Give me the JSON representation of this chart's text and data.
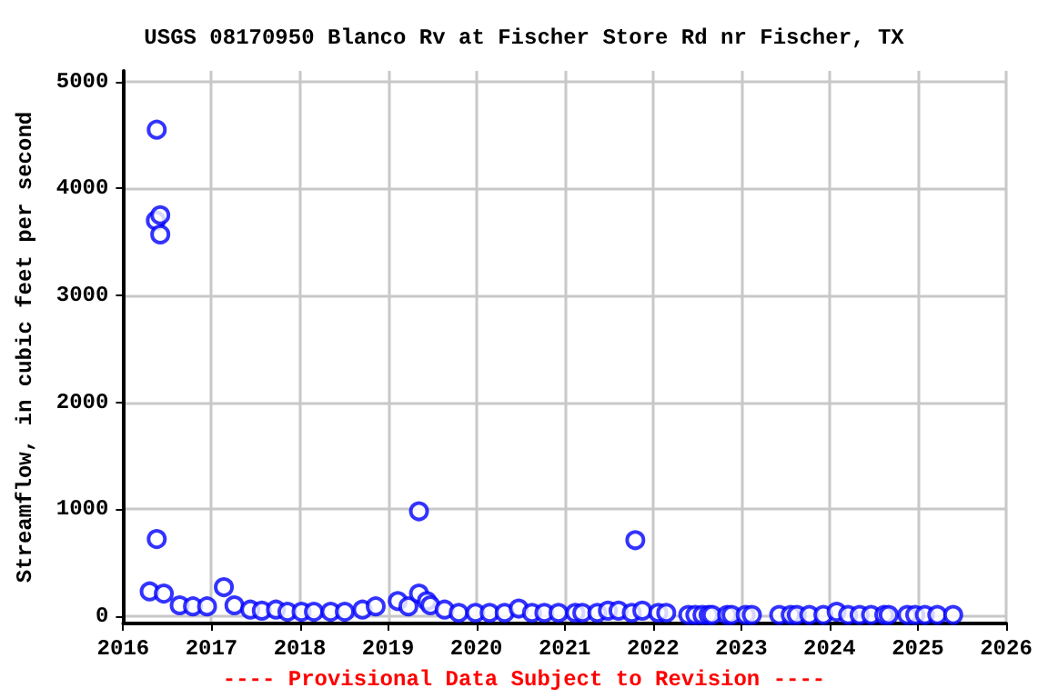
{
  "chart_data": {
    "type": "scatter",
    "title": "USGS 08170950 Blanco Rv at Fischer Store Rd nr Fischer, TX",
    "ylabel": "Streamflow, in cubic feet per second",
    "annotations": [
      "---- Provisional Data Subject to Revision ----"
    ],
    "series": [
      {
        "color": "#0000ff",
        "x": [
          2016.3,
          2016.37,
          2016.38,
          2016.38,
          2016.42,
          2016.42,
          2016.46,
          2016.64,
          2016.79,
          2016.95,
          2017.14,
          2017.26,
          2017.44,
          2017.57,
          2017.73,
          2017.86,
          2018.02,
          2018.16,
          2018.35,
          2018.51,
          2018.71,
          2018.86,
          2019.11,
          2019.23,
          2019.35,
          2019.35,
          2019.44,
          2019.48,
          2019.64,
          2019.8,
          2019.99,
          2020.15,
          2020.32,
          2020.48,
          2020.63,
          2020.77,
          2020.93,
          2021.12,
          2021.2,
          2021.37,
          2021.49,
          2021.61,
          2021.76,
          2021.8,
          2021.88,
          2022.06,
          2022.15,
          2022.4,
          2022.48,
          2022.56,
          2022.63,
          2022.67,
          2022.84,
          2022.89,
          2023.05,
          2023.12,
          2023.43,
          2023.56,
          2023.63,
          2023.77,
          2023.93,
          2024.08,
          2024.21,
          2024.34,
          2024.47,
          2024.62,
          2024.67,
          2024.88,
          2024.97,
          2025.08,
          2025.22,
          2025.4
        ],
        "values": [
          230,
          3700,
          4550,
          720,
          3750,
          3570,
          210,
          100,
          90,
          90,
          270,
          100,
          60,
          50,
          60,
          40,
          40,
          40,
          40,
          40,
          60,
          90,
          140,
          90,
          980,
          210,
          140,
          100,
          60,
          30,
          30,
          30,
          30,
          70,
          30,
          30,
          30,
          30,
          30,
          30,
          50,
          50,
          30,
          710,
          50,
          30,
          30,
          10,
          10,
          10,
          10,
          10,
          10,
          10,
          10,
          10,
          10,
          10,
          10,
          10,
          10,
          40,
          10,
          10,
          10,
          10,
          10,
          10,
          10,
          10,
          10,
          10
        ]
      }
    ],
    "xlim": [
      2016,
      2026
    ],
    "xticks": [
      2016,
      2017,
      2018,
      2019,
      2020,
      2021,
      2022,
      2023,
      2024,
      2025,
      2026
    ],
    "ylim": [
      -70,
      5100
    ],
    "yticks": [
      0,
      1000,
      2000,
      3000,
      4000,
      5000
    ],
    "grid": true,
    "marker": "circle"
  }
}
